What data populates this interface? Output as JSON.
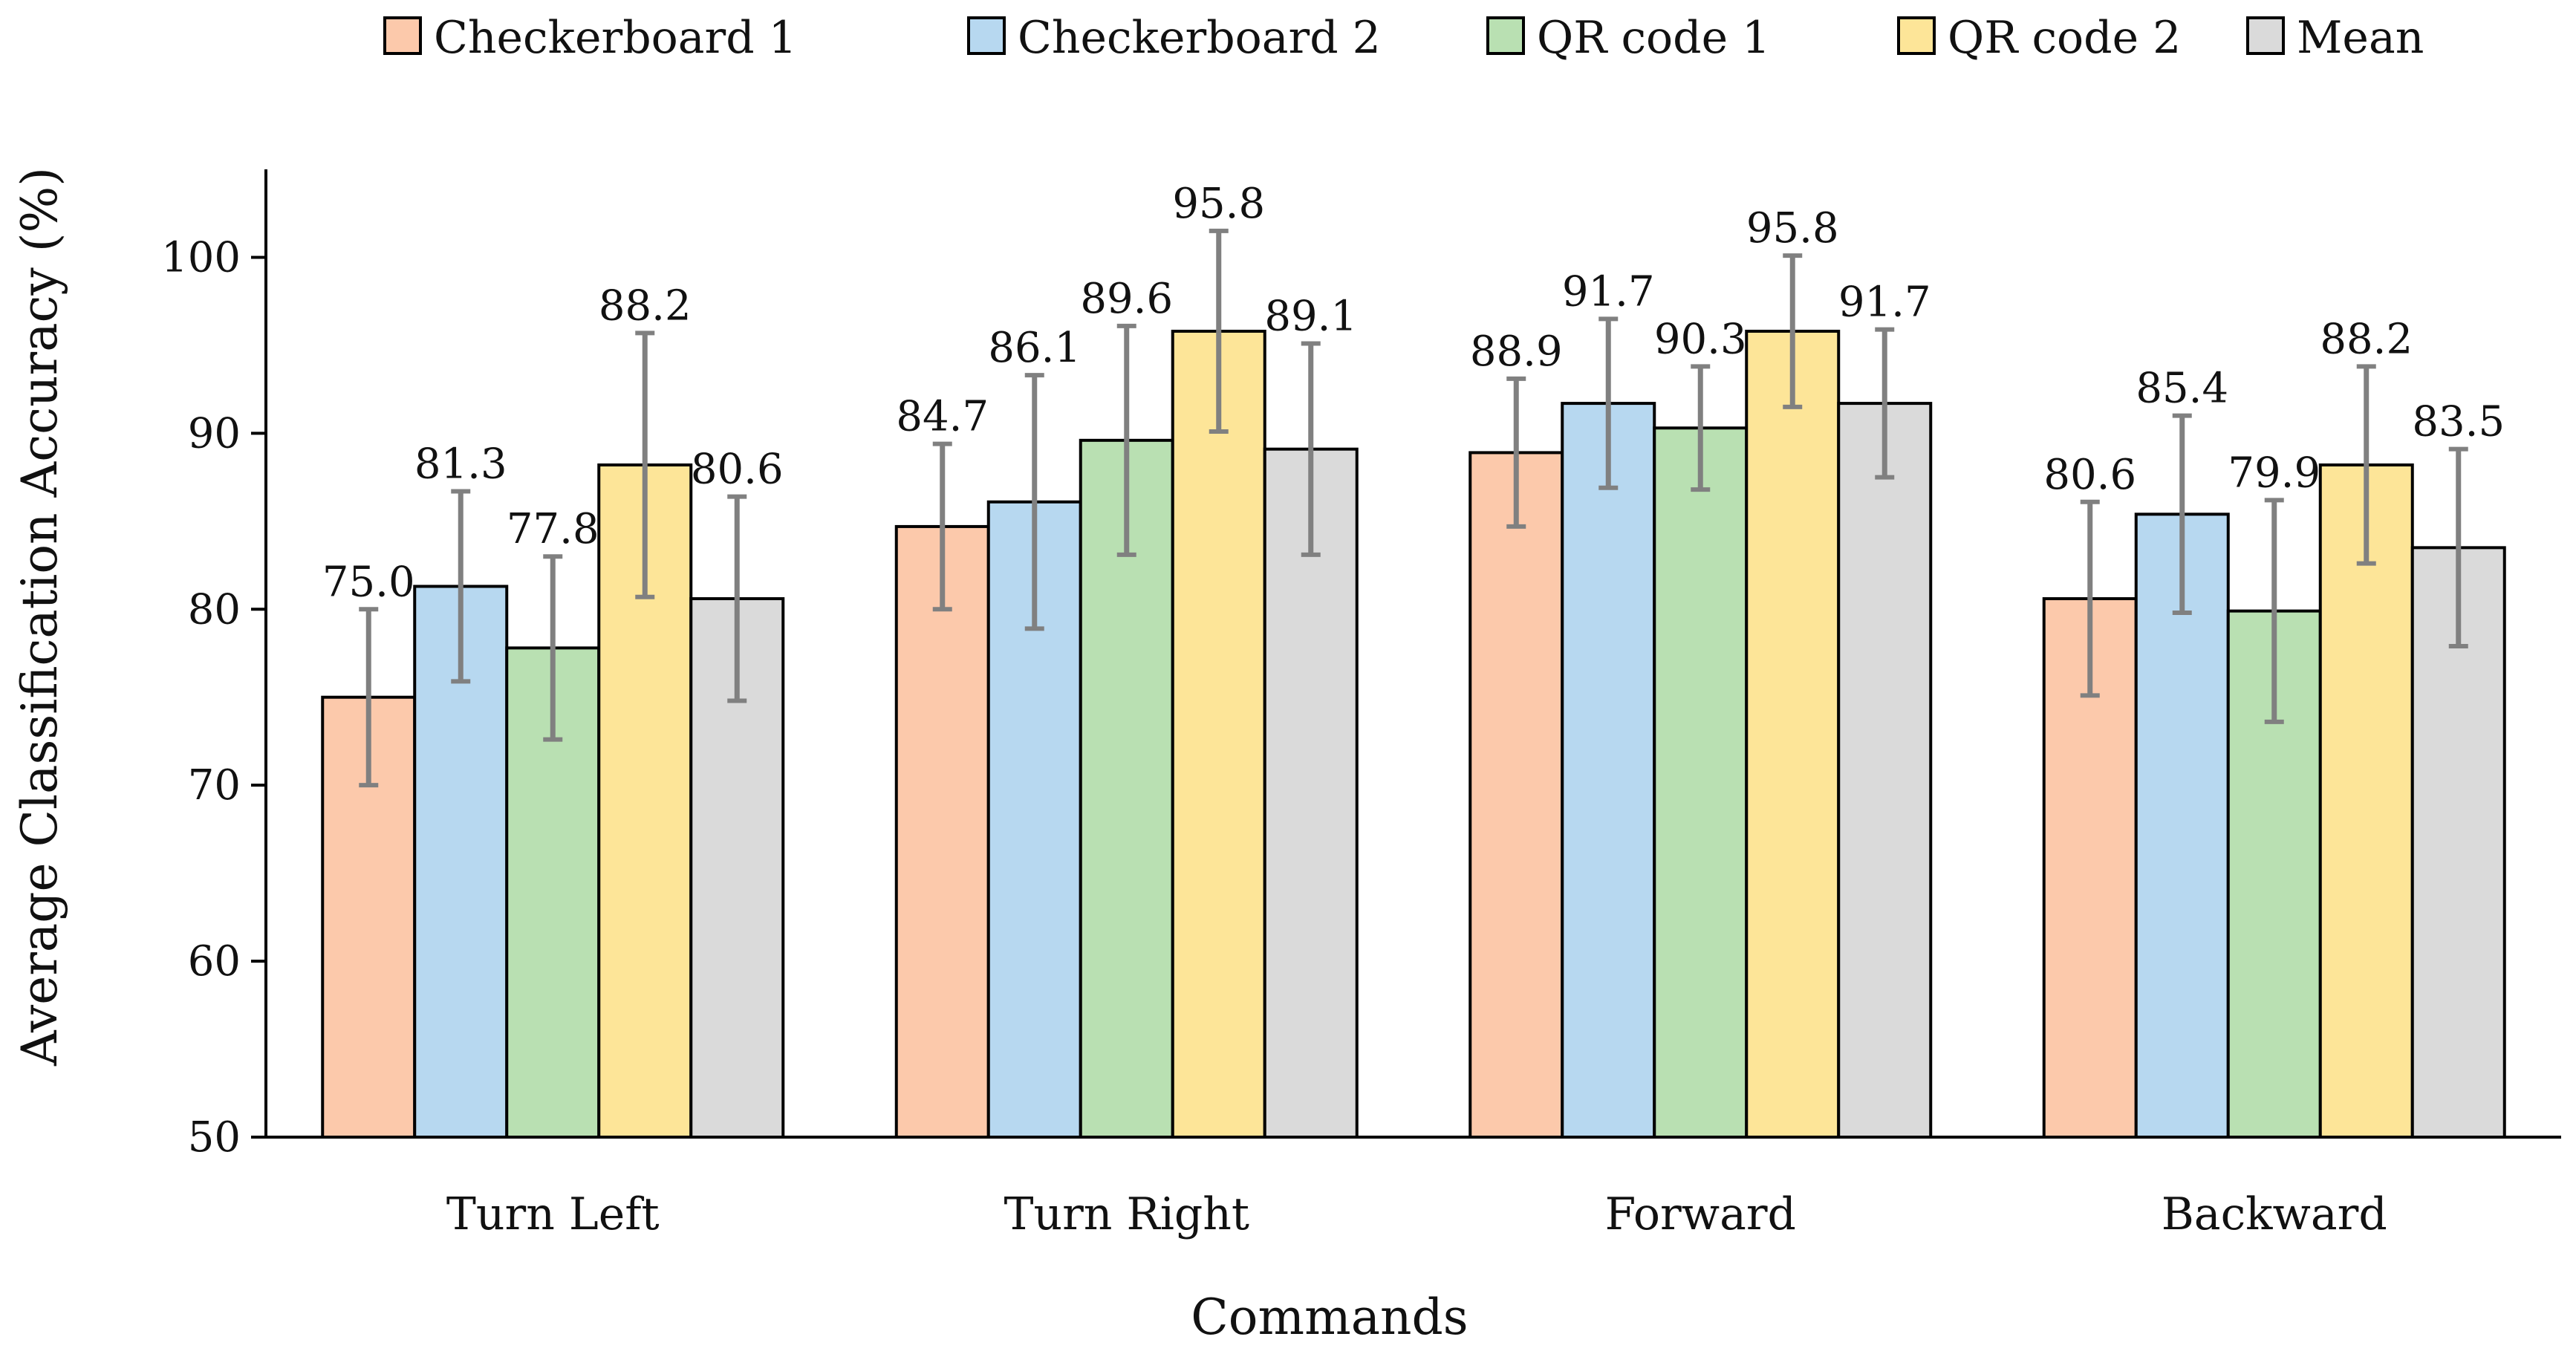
{
  "chart_data": {
    "type": "bar",
    "title": "",
    "xlabel": "Commands",
    "ylabel": "Average Classification Accuracy (%)",
    "ylim": [
      50,
      105
    ],
    "yticks": [
      50,
      60,
      70,
      80,
      90,
      100
    ],
    "ytick_labels": [
      "50",
      "60",
      "70",
      "80",
      "90",
      "100"
    ],
    "grid": false,
    "legend_position": "top",
    "categories": [
      "Turn Left",
      "Turn Right",
      "Forward",
      "Backward"
    ],
    "series": [
      {
        "name": "Checkerboard 1",
        "color": "#fcc9ab",
        "values": [
          75.0,
          84.7,
          88.9,
          80.6
        ],
        "labels": [
          "75.0",
          "84.7",
          "88.9",
          "80.6"
        ],
        "error": [
          5.0,
          4.7,
          4.2,
          5.5
        ]
      },
      {
        "name": "Checkerboard 2",
        "color": "#b7d8f0",
        "values": [
          81.3,
          86.1,
          91.7,
          85.4
        ],
        "labels": [
          "81.3",
          "86.1",
          "91.7",
          "85.4"
        ],
        "error": [
          5.4,
          7.2,
          4.8,
          5.6
        ]
      },
      {
        "name": "QR code 1",
        "color": "#b9e0b2",
        "values": [
          77.8,
          89.6,
          90.3,
          79.9
        ],
        "labels": [
          "77.8",
          "89.6",
          "90.3",
          "79.9"
        ],
        "error": [
          5.2,
          6.5,
          3.5,
          6.3
        ]
      },
      {
        "name": "QR code 2",
        "color": "#fde598",
        "values": [
          88.2,
          95.8,
          95.8,
          88.2
        ],
        "labels": [
          "88.2",
          "95.8",
          "95.8",
          "88.2"
        ],
        "error": [
          7.5,
          5.7,
          4.3,
          5.6
        ]
      },
      {
        "name": "Mean",
        "color": "#dadada",
        "values": [
          80.6,
          89.1,
          91.7,
          83.5
        ],
        "labels": [
          "80.6",
          "89.1",
          "91.7",
          "83.5"
        ],
        "error": [
          5.8,
          6.0,
          4.2,
          5.6
        ]
      }
    ],
    "error_bar_color": "#808080"
  }
}
